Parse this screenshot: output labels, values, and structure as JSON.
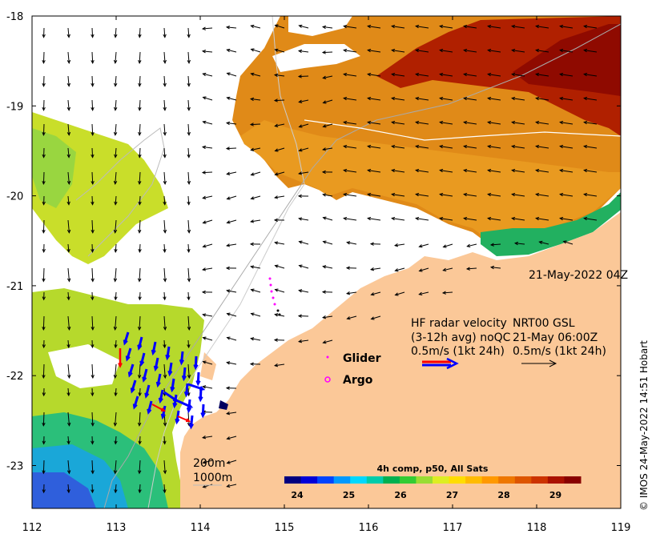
{
  "map": {
    "lon_ticks": [
      "112",
      "113",
      "114",
      "115",
      "116",
      "117",
      "118",
      "119"
    ],
    "lat_ticks": [
      "-18",
      "-19",
      "-20",
      "-21",
      "-22",
      "-23"
    ],
    "timestamp": "21-May-2022 04Z",
    "credit": "© IMOS 24-May-2022 14:51 Hobart",
    "isobath_labels": [
      "200m",
      "1000m"
    ]
  },
  "legend": {
    "hf_radar": {
      "line1": "HF radar velocity",
      "line2": "(3-12h avg) noQC",
      "line3": "0.5m/s (1kt 24h)",
      "color_primary": "#ff0000",
      "color_secondary": "#0000ff"
    },
    "nrt": {
      "line1": "NRT00 GSL",
      "line2": "21-May 06:00Z",
      "line3": "0.5m/s (1kt 24h)"
    },
    "glider_label": "Glider",
    "argo_label": "Argo",
    "glider_color": "#ff00ff",
    "argo_color": "#ff00ff"
  },
  "colorbar": {
    "title": "4h comp, p50, All Sats",
    "ticks": [
      "24",
      "25",
      "26",
      "27",
      "28",
      "29"
    ],
    "colors": [
      "#00007f",
      "#0000d8",
      "#0044ff",
      "#0099ff",
      "#00d8ff",
      "#00ccaa",
      "#00b050",
      "#33cc33",
      "#99dd33",
      "#ddee22",
      "#ffdd00",
      "#ffbb00",
      "#ff9900",
      "#ee7700",
      "#dd5500",
      "#cc3300",
      "#aa1100",
      "#880000"
    ]
  },
  "colors": {
    "land": "#fbc898",
    "sea_hot": "#b81a00",
    "sea_warm": "#e28a10",
    "sea_mid": "#d4e330",
    "sea_cool": "#1fbf6a"
  }
}
